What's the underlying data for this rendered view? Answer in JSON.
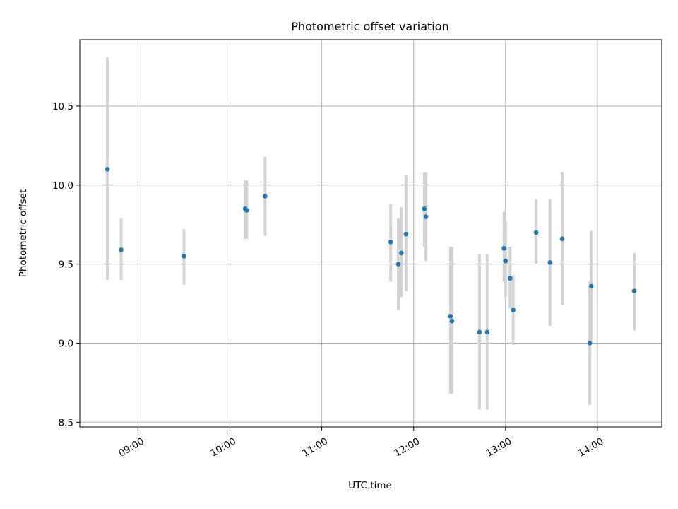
{
  "chart_data": {
    "type": "scatter",
    "title": "Photometric offset variation",
    "xlabel": "UTC time",
    "ylabel": "Photometric offset",
    "x_ticks": [
      "09:00",
      "10:00",
      "11:00",
      "12:00",
      "13:00",
      "14:00"
    ],
    "y_ticks": [
      "8.5",
      "9.0",
      "9.5",
      "10.0",
      "10.5"
    ],
    "xlim": [
      "08:22",
      "14:42"
    ],
    "ylim": [
      8.47,
      10.92
    ],
    "grid": true,
    "colors": {
      "point": "#1f77b4",
      "errorbar": "#d3d3d3"
    },
    "points": [
      {
        "t": "08:40",
        "y": 10.1,
        "lo": 9.4,
        "hi": 10.81
      },
      {
        "t": "08:49",
        "y": 9.59,
        "lo": 9.4,
        "hi": 9.79
      },
      {
        "t": "09:30",
        "y": 9.55,
        "lo": 9.37,
        "hi": 9.72
      },
      {
        "t": "10:10",
        "y": 9.85,
        "lo": 9.66,
        "hi": 10.03
      },
      {
        "t": "10:11",
        "y": 9.84,
        "lo": 9.66,
        "hi": 10.03
      },
      {
        "t": "10:23",
        "y": 9.93,
        "lo": 9.68,
        "hi": 10.18
      },
      {
        "t": "11:45",
        "y": 9.64,
        "lo": 9.39,
        "hi": 9.88
      },
      {
        "t": "11:50",
        "y": 9.5,
        "lo": 9.21,
        "hi": 9.79
      },
      {
        "t": "11:52",
        "y": 9.57,
        "lo": 9.29,
        "hi": 9.86
      },
      {
        "t": "11:55",
        "y": 9.69,
        "lo": 9.33,
        "hi": 10.06
      },
      {
        "t": "12:07",
        "y": 9.85,
        "lo": 9.61,
        "hi": 10.08
      },
      {
        "t": "12:08",
        "y": 9.8,
        "lo": 9.52,
        "hi": 10.08
      },
      {
        "t": "12:24",
        "y": 9.17,
        "lo": 8.68,
        "hi": 9.61
      },
      {
        "t": "12:25",
        "y": 9.14,
        "lo": 8.68,
        "hi": 9.61
      },
      {
        "t": "12:43",
        "y": 9.07,
        "lo": 8.58,
        "hi": 9.56
      },
      {
        "t": "12:48",
        "y": 9.07,
        "lo": 8.58,
        "hi": 9.56
      },
      {
        "t": "12:59",
        "y": 9.6,
        "lo": 9.39,
        "hi": 9.83
      },
      {
        "t": "13:00",
        "y": 9.52,
        "lo": 9.29,
        "hi": 9.77
      },
      {
        "t": "13:03",
        "y": 9.41,
        "lo": 9.22,
        "hi": 9.61
      },
      {
        "t": "13:05",
        "y": 9.21,
        "lo": 8.99,
        "hi": 9.43
      },
      {
        "t": "13:20",
        "y": 9.7,
        "lo": 9.5,
        "hi": 9.91
      },
      {
        "t": "13:29",
        "y": 9.51,
        "lo": 9.11,
        "hi": 9.91
      },
      {
        "t": "13:37",
        "y": 9.66,
        "lo": 9.24,
        "hi": 10.08
      },
      {
        "t": "13:55",
        "y": 9.0,
        "lo": 8.61,
        "hi": 9.39
      },
      {
        "t": "13:56",
        "y": 9.36,
        "lo": 9.01,
        "hi": 9.71
      },
      {
        "t": "14:24",
        "y": 9.33,
        "lo": 9.08,
        "hi": 9.57
      }
    ]
  }
}
